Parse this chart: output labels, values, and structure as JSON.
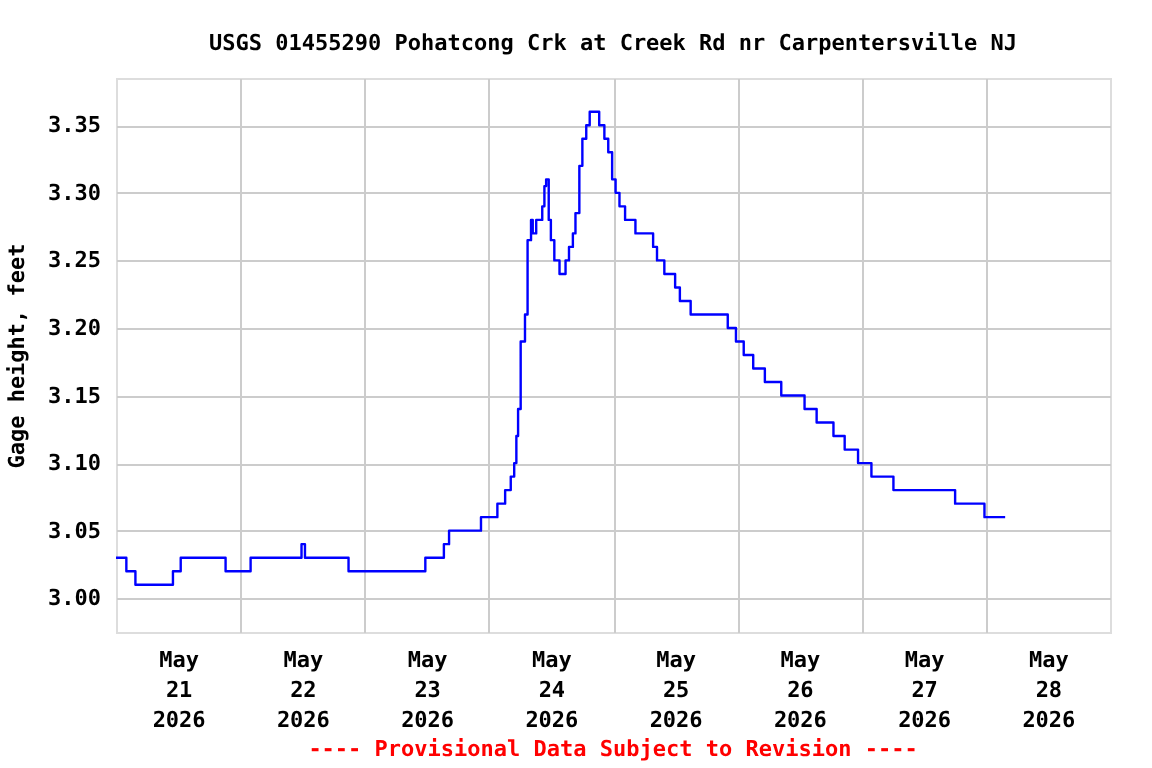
{
  "chart_data": {
    "type": "step",
    "title": "USGS 01455290 Pohatcong Crk at Creek Rd nr Carpentersville NJ",
    "ylabel": "Gage height, feet",
    "annotations": [
      "---- Provisional Data Subject to Revision ----"
    ],
    "x": [
      "2026-05-21T00:00",
      "2026-05-21T02:00",
      "2026-05-21T03:45",
      "2026-05-21T11:00",
      "2026-05-21T12:30",
      "2026-05-21T21:10",
      "2026-05-22T02:00",
      "2026-05-22T11:50",
      "2026-05-22T12:30",
      "2026-05-22T20:55",
      "2026-05-23T11:45",
      "2026-05-23T15:20",
      "2026-05-23T16:20",
      "2026-05-23T22:30",
      "2026-05-24T01:40",
      "2026-05-24T03:10",
      "2026-05-24T04:15",
      "2026-05-24T04:55",
      "2026-05-24T05:20",
      "2026-05-24T05:40",
      "2026-05-24T06:10",
      "2026-05-24T07:00",
      "2026-05-24T07:30",
      "2026-05-24T08:10",
      "2026-05-24T08:30",
      "2026-05-24T09:10",
      "2026-05-24T10:20",
      "2026-05-24T10:45",
      "2026-05-24T11:05",
      "2026-05-24T11:35",
      "2026-05-24T12:00",
      "2026-05-24T12:40",
      "2026-05-24T13:40",
      "2026-05-24T14:50",
      "2026-05-24T15:30",
      "2026-05-24T16:15",
      "2026-05-24T16:45",
      "2026-05-24T17:30",
      "2026-05-24T18:05",
      "2026-05-24T18:50",
      "2026-05-24T19:30",
      "2026-05-24T21:20",
      "2026-05-24T22:20",
      "2026-05-24T23:05",
      "2026-05-24T23:50",
      "2026-05-25T00:30",
      "2026-05-25T01:15",
      "2026-05-25T02:20",
      "2026-05-25T04:20",
      "2026-05-25T07:45",
      "2026-05-25T08:30",
      "2026-05-25T09:55",
      "2026-05-25T12:00",
      "2026-05-25T12:55",
      "2026-05-25T15:00",
      "2026-05-25T22:10",
      "2026-05-25T23:45",
      "2026-05-26T01:15",
      "2026-05-26T03:05",
      "2026-05-26T05:20",
      "2026-05-26T08:30",
      "2026-05-26T13:00",
      "2026-05-26T15:20",
      "2026-05-26T18:35",
      "2026-05-26T20:45",
      "2026-05-26T23:20",
      "2026-05-27T01:55",
      "2026-05-27T06:10",
      "2026-05-27T18:05",
      "2026-05-27T23:45",
      "2026-05-28T03:45"
    ],
    "series": [
      {
        "color": "#0000ff",
        "values": [
          3.03,
          3.02,
          3.01,
          3.02,
          3.03,
          3.02,
          3.03,
          3.04,
          3.03,
          3.02,
          3.03,
          3.04,
          3.05,
          3.06,
          3.07,
          3.08,
          3.09,
          3.1,
          3.12,
          3.14,
          3.19,
          3.21,
          3.265,
          3.28,
          3.27,
          3.28,
          3.29,
          3.305,
          3.31,
          3.28,
          3.265,
          3.25,
          3.24,
          3.25,
          3.26,
          3.27,
          3.285,
          3.32,
          3.34,
          3.35,
          3.36,
          3.35,
          3.34,
          3.33,
          3.31,
          3.3,
          3.29,
          3.28,
          3.27,
          3.26,
          3.25,
          3.24,
          3.23,
          3.22,
          3.21,
          3.2,
          3.19,
          3.18,
          3.17,
          3.16,
          3.15,
          3.14,
          3.13,
          3.12,
          3.11,
          3.1,
          3.09,
          3.08,
          3.07,
          3.06,
          3.06
        ]
      }
    ],
    "xlim": [
      "2026-05-21T00:00",
      "2026-05-29T00:00"
    ],
    "xticks": [
      {
        "value": "2026-05-21T12:00",
        "label": "May 21 2026"
      },
      {
        "value": "2026-05-22T00:00",
        "label": null
      },
      {
        "value": "2026-05-22T12:00",
        "label": "May 22 2026"
      },
      {
        "value": "2026-05-23T00:00",
        "label": null
      },
      {
        "value": "2026-05-23T12:00",
        "label": "May 23 2026"
      },
      {
        "value": "2026-05-24T00:00",
        "label": null
      },
      {
        "value": "2026-05-24T12:00",
        "label": "May 24 2026"
      },
      {
        "value": "2026-05-25T00:00",
        "label": null
      },
      {
        "value": "2026-05-25T12:00",
        "label": "May 25 2026"
      },
      {
        "value": "2026-05-26T00:00",
        "label": null
      },
      {
        "value": "2026-05-26T12:00",
        "label": "May 26 2026"
      },
      {
        "value": "2026-05-27T00:00",
        "label": null
      },
      {
        "value": "2026-05-27T12:00",
        "label": "May 27 2026"
      },
      {
        "value": "2026-05-28T00:00",
        "label": null
      },
      {
        "value": "2026-05-28T12:00",
        "label": "May 28 2026"
      }
    ],
    "ylim": [
      2.975,
      3.385
    ],
    "yticks": [
      {
        "value": 3.0,
        "label": "3.00"
      },
      {
        "value": 3.05,
        "label": "3.05"
      },
      {
        "value": 3.1,
        "label": "3.10"
      },
      {
        "value": 3.15,
        "label": "3.15"
      },
      {
        "value": 3.2,
        "label": "3.20"
      },
      {
        "value": 3.25,
        "label": "3.25"
      },
      {
        "value": 3.3,
        "label": "3.30"
      },
      {
        "value": 3.35,
        "label": "3.35"
      }
    ],
    "grid": true,
    "line_style": "solid"
  }
}
